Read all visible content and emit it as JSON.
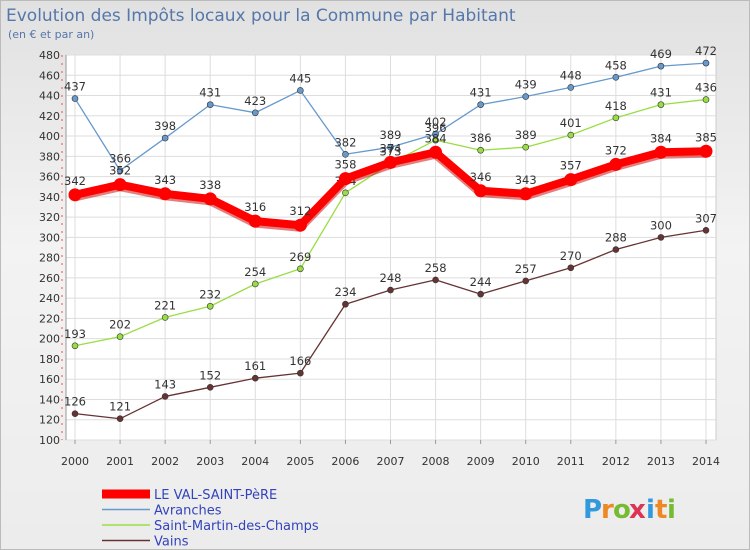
{
  "chart_data": {
    "type": "line",
    "title": "Evolution des Impôts locaux pour la Commune par Habitant",
    "subtitle": "(en € et par an)",
    "x": [
      "2000",
      "2001",
      "2002",
      "2003",
      "2004",
      "2005",
      "2006",
      "2007",
      "2008",
      "2009",
      "2010",
      "2011",
      "2012",
      "2013",
      "2014"
    ],
    "yticks": [
      100,
      120,
      140,
      160,
      180,
      200,
      220,
      240,
      260,
      280,
      300,
      320,
      340,
      360,
      380,
      400,
      420,
      440,
      460,
      480
    ],
    "ylim": [
      100,
      480
    ],
    "grid": true,
    "legend_position": "bottom-left",
    "series": [
      {
        "name": "LE VAL-SAINT-PèRE",
        "color": "#ff0000",
        "values": [
          342,
          352,
          343,
          338,
          316,
          312,
          358,
          374,
          384,
          346,
          343,
          357,
          372,
          384,
          385
        ]
      },
      {
        "name": "Avranches",
        "color": "#6699cc",
        "values": [
          437,
          366,
          398,
          431,
          423,
          445,
          382,
          389,
          402,
          431,
          439,
          448,
          458,
          469,
          472
        ]
      },
      {
        "name": "Saint-Martin-des-Champs",
        "color": "#99dd44",
        "values": [
          193,
          202,
          221,
          232,
          254,
          269,
          344,
          373,
          396,
          386,
          389,
          401,
          418,
          431,
          436
        ]
      },
      {
        "name": "Vains",
        "color": "#663333",
        "values": [
          126,
          121,
          143,
          152,
          161,
          166,
          234,
          248,
          258,
          244,
          257,
          270,
          288,
          300,
          307
        ]
      }
    ]
  },
  "brand": {
    "logo_text": "Proxiti"
  }
}
